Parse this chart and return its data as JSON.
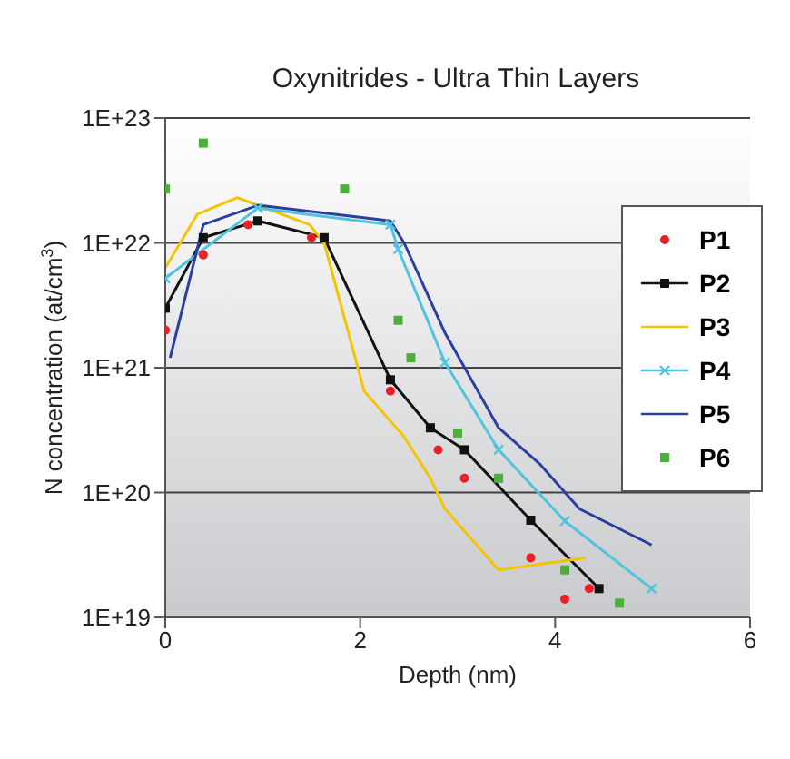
{
  "chart_data": {
    "type": "line",
    "title": "Oxynitrides - Ultra Thin Layers",
    "xlabel": "Depth (nm)",
    "ylabel": "N concentration (at/cm$^{3}$)",
    "xlim": [
      0,
      6
    ],
    "xticks": [
      0,
      2,
      4,
      6
    ],
    "ylim": [
      1e+19,
      1e+23
    ],
    "yticks": [
      {
        "value": 1e+19,
        "label": "1E+19"
      },
      {
        "value": 1e+20,
        "label": "1E+20"
      },
      {
        "value": 1e+21,
        "label": "1E+21"
      },
      {
        "value": 1e+22,
        "label": "1E+22"
      },
      {
        "value": 1e+23,
        "label": "1E+23"
      }
    ],
    "log": "y",
    "grid": "y",
    "legend": "right",
    "series": [
      {
        "name": "P1",
        "type": "scatter",
        "marker": "circle",
        "color": "#e8202a",
        "x": [
          0,
          0.39,
          0.85,
          1.5,
          2.31,
          2.8,
          3.07,
          3.75,
          4.1,
          4.35
        ],
        "values": [
          2e+21,
          8e+21,
          1.4e+22,
          1.1e+22,
          6.5e+20,
          2.2e+20,
          1.3e+20,
          3e+19,
          1.4e+19,
          1.7e+19
        ]
      },
      {
        "name": "P2",
        "marker": "square",
        "color": "#111111",
        "x": [
          0,
          0.39,
          0.95,
          1.63,
          2.31,
          2.72,
          3.07,
          3.75,
          4.45
        ],
        "values": [
          3e+21,
          1.1e+22,
          1.5e+22,
          1.1e+22,
          8e+20,
          3.3e+20,
          2.2e+20,
          6e+19,
          1.7e+19
        ]
      },
      {
        "name": "P3",
        "color": "#f5c400",
        "x": [
          0,
          0.33,
          0.74,
          1.48,
          1.63,
          2.04,
          2.45,
          2.72,
          2.87,
          3.42,
          4.31
        ],
        "values": [
          6.3e+21,
          1.7e+22,
          2.3e+22,
          1.4e+22,
          1e+22,
          6.5e+20,
          2.8e+20,
          1.3e+20,
          7.4e+19,
          2.4e+19,
          3e+19
        ]
      },
      {
        "name": "P4",
        "marker": "cross",
        "color": "#4fc4dc",
        "x": [
          0,
          0.95,
          2.31,
          2.39,
          2.87,
          3.42,
          4.1,
          4.99
        ],
        "values": [
          5.2e+21,
          1.9e+22,
          1.4e+22,
          8.9e+21,
          1.1e+21,
          2.2e+20,
          5.9e+19,
          1.7e+19
        ]
      },
      {
        "name": "P5",
        "color": "#2a3fa0",
        "x": [
          0.05,
          0.39,
          0.95,
          2.31,
          2.45,
          2.87,
          3.42,
          3.84,
          4.25,
          4.99
        ],
        "values": [
          1.2e+21,
          1.4e+22,
          2e+22,
          1.5e+22,
          1e+22,
          1.9e+21,
          3.3e+20,
          1.7e+20,
          7.4e+19,
          3.8e+19
        ]
      },
      {
        "name": "P6",
        "type": "scatter",
        "marker": "square",
        "color": "#4caf3a",
        "x": [
          0,
          0.39,
          1.84,
          2.39,
          2.52,
          3.0,
          3.42,
          4.1,
          4.66
        ],
        "values": [
          2.7e+22,
          6.3e+22,
          2.7e+22,
          2.4e+21,
          1.2e+21,
          3e+20,
          1.3e+20,
          2.4e+19,
          1.3e+19
        ]
      }
    ]
  }
}
